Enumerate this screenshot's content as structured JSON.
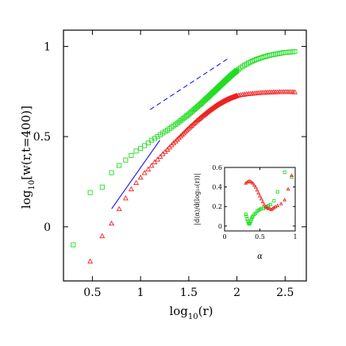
{
  "chart_data": [
    {
      "type": "scatter",
      "title": "",
      "xlabel_base": "log",
      "xlabel_sub": "10",
      "xlabel_rest": "(r)",
      "ylabel_base": "log",
      "ylabel_sub": "10",
      "ylabel_rest": "[w(r,t=400)]",
      "xlim": [
        0.2,
        2.72
      ],
      "ylim": [
        -0.3,
        1.09
      ],
      "xticks": [
        0.5,
        1,
        1.5,
        2,
        2.5
      ],
      "xtick_labels": [
        "0.5",
        "1",
        "1.5",
        "2",
        "2.5"
      ],
      "yticks": [
        0,
        0.5,
        1
      ],
      "ytick_labels": [
        "0",
        "0.5",
        "1"
      ],
      "grid": false,
      "series": [
        {
          "marker": "square",
          "color": "#22dd22",
          "x": [
            0.301,
            0.477,
            0.602,
            0.699,
            0.778,
            0.845,
            0.903,
            0.954,
            1.0,
            1.041,
            1.079,
            1.114,
            1.146,
            1.176,
            1.204,
            1.23,
            1.255,
            1.279,
            1.301,
            1.322,
            1.342,
            1.362,
            1.38,
            1.398,
            1.415,
            1.431,
            1.447,
            1.462,
            1.477,
            1.491,
            1.505,
            1.518,
            1.531,
            1.544,
            1.556,
            1.568,
            1.58,
            1.591,
            1.602,
            1.613,
            1.623,
            1.633,
            1.643,
            1.653,
            1.663,
            1.672,
            1.681,
            1.69,
            1.699,
            1.708,
            1.716,
            1.724,
            1.732,
            1.74,
            1.748,
            1.756,
            1.763,
            1.771,
            1.778,
            1.785,
            1.792,
            1.799,
            1.806,
            1.813,
            1.819,
            1.826,
            1.832,
            1.839,
            1.845,
            1.851,
            1.857,
            1.863,
            1.869,
            1.875,
            1.881,
            1.886,
            1.892,
            1.898,
            1.903,
            1.908,
            1.914,
            1.919,
            1.924,
            1.929,
            1.934,
            1.94,
            1.944,
            1.949,
            1.954,
            1.959,
            1.964,
            1.968,
            1.973,
            1.978,
            1.982,
            1.987,
            1.991,
            1.996,
            2.0,
            2.02,
            2.04,
            2.06,
            2.08,
            2.1,
            2.12,
            2.14,
            2.16,
            2.18,
            2.2,
            2.22,
            2.24,
            2.26,
            2.28,
            2.3,
            2.32,
            2.34,
            2.36,
            2.38,
            2.4,
            2.42,
            2.44,
            2.46,
            2.48,
            2.5,
            2.52,
            2.54,
            2.56,
            2.58,
            2.6
          ],
          "y": [
            -0.1,
            0.19,
            0.22,
            0.3,
            0.34,
            0.37,
            0.395,
            0.42,
            0.435,
            0.45,
            0.465,
            0.48,
            0.49,
            0.5,
            0.51,
            0.52,
            0.528,
            0.536,
            0.544,
            0.552,
            0.56,
            0.567,
            0.574,
            0.581,
            0.588,
            0.595,
            0.602,
            0.608,
            0.614,
            0.62,
            0.626,
            0.632,
            0.638,
            0.644,
            0.65,
            0.655,
            0.66,
            0.666,
            0.671,
            0.676,
            0.681,
            0.686,
            0.691,
            0.696,
            0.701,
            0.705,
            0.71,
            0.714,
            0.718,
            0.722,
            0.727,
            0.731,
            0.735,
            0.739,
            0.743,
            0.747,
            0.751,
            0.754,
            0.758,
            0.762,
            0.765,
            0.769,
            0.772,
            0.776,
            0.779,
            0.782,
            0.786,
            0.789,
            0.792,
            0.795,
            0.798,
            0.801,
            0.804,
            0.807,
            0.81,
            0.813,
            0.816,
            0.818,
            0.821,
            0.824,
            0.826,
            0.829,
            0.831,
            0.834,
            0.836,
            0.839,
            0.841,
            0.843,
            0.846,
            0.848,
            0.85,
            0.852,
            0.854,
            0.856,
            0.858,
            0.86,
            0.862,
            0.864,
            0.866,
            0.874,
            0.882,
            0.889,
            0.896,
            0.902,
            0.908,
            0.913,
            0.918,
            0.923,
            0.927,
            0.931,
            0.935,
            0.938,
            0.942,
            0.945,
            0.948,
            0.951,
            0.953,
            0.955,
            0.957,
            0.959,
            0.961,
            0.963,
            0.965,
            0.966,
            0.967,
            0.968,
            0.969,
            0.97,
            0.971
          ]
        },
        {
          "marker": "triangle",
          "color": "#ee2222",
          "x": [
            0.477,
            0.602,
            0.699,
            0.778,
            0.845,
            0.903,
            0.954,
            1.0,
            1.041,
            1.079,
            1.114,
            1.146,
            1.176,
            1.204,
            1.23,
            1.255,
            1.279,
            1.301,
            1.322,
            1.342,
            1.362,
            1.38,
            1.398,
            1.415,
            1.431,
            1.447,
            1.462,
            1.477,
            1.491,
            1.505,
            1.518,
            1.531,
            1.544,
            1.556,
            1.568,
            1.58,
            1.591,
            1.602,
            1.613,
            1.623,
            1.633,
            1.643,
            1.653,
            1.663,
            1.672,
            1.681,
            1.69,
            1.699,
            1.708,
            1.716,
            1.724,
            1.732,
            1.74,
            1.748,
            1.756,
            1.763,
            1.771,
            1.778,
            1.785,
            1.792,
            1.799,
            1.806,
            1.813,
            1.819,
            1.826,
            1.832,
            1.839,
            1.845,
            1.851,
            1.857,
            1.863,
            1.869,
            1.875,
            1.881,
            1.886,
            1.892,
            1.898,
            1.903,
            1.908,
            1.914,
            1.919,
            1.924,
            1.929,
            1.934,
            1.94,
            1.944,
            1.949,
            1.954,
            1.959,
            1.964,
            1.968,
            1.973,
            1.978,
            1.982,
            1.987,
            1.991,
            1.996,
            2.0,
            2.02,
            2.04,
            2.06,
            2.08,
            2.1,
            2.12,
            2.14,
            2.16,
            2.18,
            2.2,
            2.22,
            2.24,
            2.26,
            2.28,
            2.3,
            2.32,
            2.34,
            2.36,
            2.38,
            2.4,
            2.42,
            2.44,
            2.46,
            2.48,
            2.5,
            2.52,
            2.54,
            2.56,
            2.58,
            2.6
          ],
          "y": [
            -0.19,
            -0.05,
            0.02,
            0.1,
            0.16,
            0.21,
            0.245,
            0.275,
            0.3,
            0.32,
            0.34,
            0.36,
            0.375,
            0.39,
            0.405,
            0.418,
            0.43,
            0.442,
            0.454,
            0.465,
            0.475,
            0.485,
            0.494,
            0.503,
            0.512,
            0.52,
            0.528,
            0.536,
            0.543,
            0.55,
            0.557,
            0.563,
            0.569,
            0.575,
            0.581,
            0.587,
            0.592,
            0.597,
            0.602,
            0.607,
            0.611,
            0.616,
            0.62,
            0.624,
            0.628,
            0.632,
            0.636,
            0.64,
            0.643,
            0.647,
            0.65,
            0.653,
            0.656,
            0.659,
            0.662,
            0.665,
            0.668,
            0.67,
            0.673,
            0.675,
            0.678,
            0.68,
            0.682,
            0.684,
            0.686,
            0.688,
            0.69,
            0.692,
            0.694,
            0.696,
            0.697,
            0.699,
            0.701,
            0.702,
            0.704,
            0.705,
            0.707,
            0.708,
            0.709,
            0.711,
            0.712,
            0.713,
            0.714,
            0.715,
            0.716,
            0.717,
            0.718,
            0.719,
            0.72,
            0.721,
            0.722,
            0.723,
            0.724,
            0.725,
            0.726,
            0.726,
            0.727,
            0.728,
            0.73,
            0.732,
            0.734,
            0.735,
            0.737,
            0.738,
            0.739,
            0.74,
            0.741,
            0.742,
            0.743,
            0.744,
            0.745,
            0.745,
            0.746,
            0.746,
            0.747,
            0.747,
            0.748,
            0.748,
            0.748,
            0.749,
            0.749,
            0.749,
            0.749,
            0.749,
            0.749,
            0.749,
            0.748,
            0.748
          ]
        }
      ],
      "reference_lines": [
        {
          "style": "solid",
          "color": "#0000ff",
          "x": [
            0.7,
            1.2
          ],
          "y": [
            0.1,
            0.48
          ]
        },
        {
          "style": "dashed",
          "color": "#0000ff",
          "x": [
            1.1,
            1.9
          ],
          "y": [
            0.65,
            0.93
          ]
        }
      ]
    },
    {
      "type": "scatter",
      "title": "",
      "xlabel": "α",
      "ylabel": "|d⟨α⟩/d(log₁₀(r))|",
      "xlim": [
        0,
        1
      ],
      "ylim": [
        -0.05,
        0.6
      ],
      "xticks": [
        0,
        0.5,
        1
      ],
      "xtick_labels": [
        "0",
        "0.5",
        "1"
      ],
      "yticks": [
        0,
        0.2,
        0.4,
        0.6
      ],
      "ytick_labels": [
        "0",
        "0.2",
        "0.4",
        "0.6"
      ],
      "series": [
        {
          "marker": "square",
          "color": "#22dd22",
          "x": [
            0.3,
            0.31,
            0.32,
            0.33,
            0.34,
            0.35,
            0.36,
            0.37,
            0.38,
            0.39,
            0.4,
            0.42,
            0.44,
            0.46,
            0.48,
            0.5,
            0.52,
            0.55,
            0.58,
            0.6,
            0.62,
            0.65,
            0.7,
            0.75,
            0.85,
            0.95
          ],
          "y": [
            0.12,
            0.1,
            0.07,
            0.05,
            0.03,
            0.02,
            0.03,
            0.05,
            0.07,
            0.09,
            0.1,
            0.12,
            0.13,
            0.15,
            0.16,
            0.17,
            0.18,
            0.18,
            0.19,
            0.2,
            0.21,
            0.22,
            0.26,
            0.35,
            0.55,
            0.5
          ]
        },
        {
          "marker": "triangle",
          "color": "#ee2222",
          "x": [
            0.3,
            0.32,
            0.34,
            0.36,
            0.38,
            0.4,
            0.42,
            0.44,
            0.46,
            0.48,
            0.5,
            0.52,
            0.54,
            0.56,
            0.58,
            0.6,
            0.62,
            0.64,
            0.66,
            0.68,
            0.7,
            0.72,
            0.75,
            0.8,
            0.85,
            0.9,
            0.95
          ],
          "y": [
            0.44,
            0.45,
            0.46,
            0.46,
            0.45,
            0.44,
            0.42,
            0.4,
            0.37,
            0.34,
            0.31,
            0.28,
            0.25,
            0.22,
            0.2,
            0.19,
            0.18,
            0.18,
            0.17,
            0.18,
            0.19,
            0.2,
            0.21,
            0.23,
            0.27,
            0.38,
            0.52
          ]
        }
      ]
    }
  ]
}
